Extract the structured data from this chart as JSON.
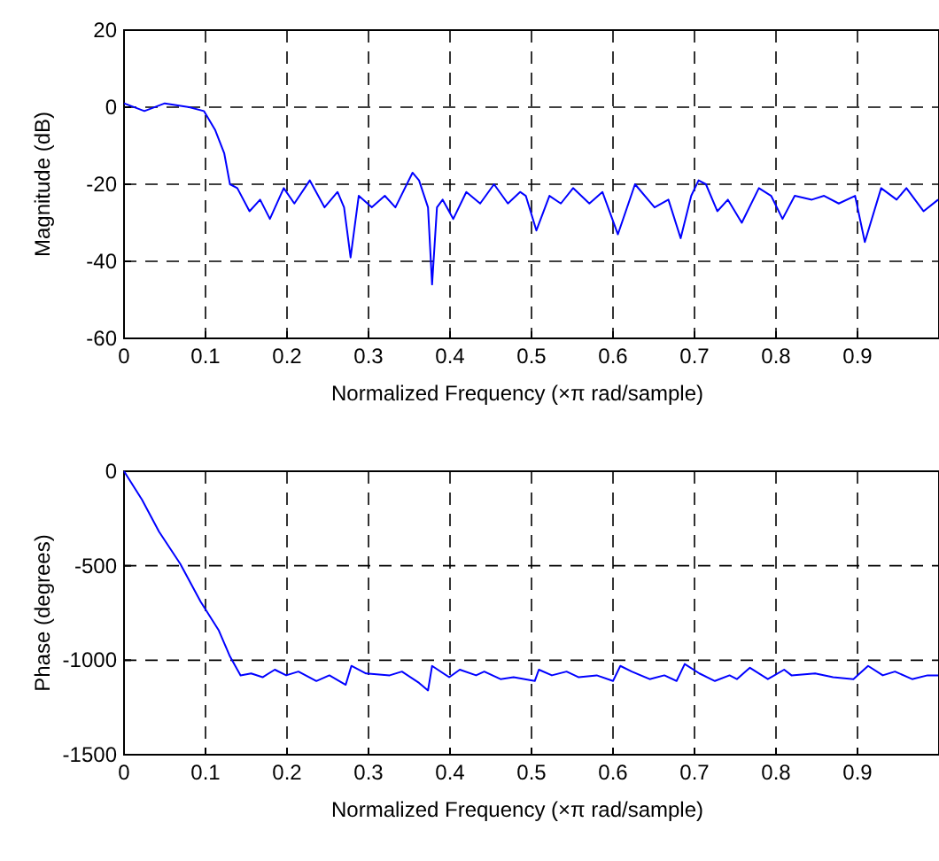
{
  "chart_data": [
    {
      "type": "line",
      "xlabel": "Normalized Frequency  (×π rad/sample)",
      "ylabel": "Magnitude (dB)",
      "xlim": [
        0,
        1
      ],
      "ylim": [
        -60,
        20
      ],
      "xticks": [
        0,
        0.1,
        0.2,
        0.3,
        0.4,
        0.5,
        0.6,
        0.7,
        0.8,
        0.9
      ],
      "yticks": [
        -60,
        -40,
        -20,
        0,
        20
      ],
      "grid": true,
      "marker": "none",
      "line_style": "solid",
      "series": [
        {
          "color": "#0000ff",
          "x": [
            0,
            0.025,
            0.05,
            0.08,
            0.098,
            0.112,
            0.123,
            0.13,
            0.139,
            0.154,
            0.167,
            0.179,
            0.196,
            0.209,
            0.228,
            0.246,
            0.262,
            0.27,
            0.278,
            0.288,
            0.304,
            0.32,
            0.333,
            0.354,
            0.362,
            0.373,
            0.378,
            0.384,
            0.391,
            0.404,
            0.42,
            0.437,
            0.454,
            0.471,
            0.486,
            0.493,
            0.506,
            0.522,
            0.536,
            0.551,
            0.571,
            0.587,
            0.606,
            0.627,
            0.651,
            0.668,
            0.683,
            0.696,
            0.705,
            0.714,
            0.728,
            0.741,
            0.758,
            0.779,
            0.794,
            0.808,
            0.823,
            0.844,
            0.859,
            0.877,
            0.897,
            0.909,
            0.929,
            0.948,
            0.96,
            0.981,
            0.999
          ],
          "values": [
            1,
            -1,
            1,
            0,
            -1,
            -6,
            -12,
            -20,
            -21,
            -27,
            -24,
            -29,
            -21,
            -25,
            -19,
            -26,
            -22,
            -26,
            -39,
            -23,
            -26,
            -23,
            -26,
            -17,
            -19,
            -26,
            -46,
            -26,
            -24,
            -29,
            -22,
            -25,
            -20,
            -25,
            -22,
            -23,
            -32,
            -23,
            -25,
            -21,
            -25,
            -22,
            -33,
            -20,
            -26,
            -24,
            -34,
            -23,
            -19,
            -20,
            -27,
            -24,
            -30,
            -21,
            -23,
            -29,
            -23,
            -24,
            -23,
            -25,
            -23,
            -35,
            -21,
            -24,
            -21,
            -27,
            -24
          ]
        }
      ]
    },
    {
      "type": "line",
      "xlabel": "Normalized Frequency  (×π rad/sample)",
      "ylabel": "Phase (degrees)",
      "xlim": [
        0,
        1
      ],
      "ylim": [
        -1500,
        0
      ],
      "xticks": [
        0,
        0.1,
        0.2,
        0.3,
        0.4,
        0.5,
        0.6,
        0.7,
        0.8,
        0.9
      ],
      "yticks": [
        -1500,
        -1000,
        -500,
        0
      ],
      "grid": true,
      "marker": "none",
      "line_style": "solid",
      "series": [
        {
          "color": "#0000ff",
          "x": [
            0,
            0.022,
            0.043,
            0.069,
            0.094,
            0.116,
            0.13,
            0.143,
            0.156,
            0.17,
            0.185,
            0.199,
            0.214,
            0.236,
            0.252,
            0.272,
            0.279,
            0.297,
            0.326,
            0.341,
            0.362,
            0.373,
            0.378,
            0.399,
            0.412,
            0.432,
            0.442,
            0.462,
            0.478,
            0.504,
            0.509,
            0.525,
            0.543,
            0.558,
            0.58,
            0.6,
            0.609,
            0.623,
            0.645,
            0.663,
            0.678,
            0.688,
            0.706,
            0.725,
            0.743,
            0.752,
            0.768,
            0.79,
            0.81,
            0.819,
            0.848,
            0.87,
            0.895,
            0.913,
            0.931,
            0.946,
            0.967,
            0.986,
            0.999
          ],
          "values": [
            0,
            -150,
            -320,
            -490,
            -690,
            -840,
            -980,
            -1080,
            -1070,
            -1090,
            -1050,
            -1080,
            -1060,
            -1110,
            -1080,
            -1130,
            -1030,
            -1070,
            -1080,
            -1060,
            -1120,
            -1160,
            -1030,
            -1090,
            -1050,
            -1080,
            -1060,
            -1100,
            -1090,
            -1110,
            -1050,
            -1080,
            -1060,
            -1090,
            -1080,
            -1110,
            -1030,
            -1060,
            -1100,
            -1080,
            -1110,
            -1020,
            -1070,
            -1110,
            -1080,
            -1100,
            -1040,
            -1100,
            -1050,
            -1080,
            -1070,
            -1090,
            -1100,
            -1030,
            -1080,
            -1060,
            -1100,
            -1080,
            -1080
          ]
        }
      ]
    }
  ]
}
